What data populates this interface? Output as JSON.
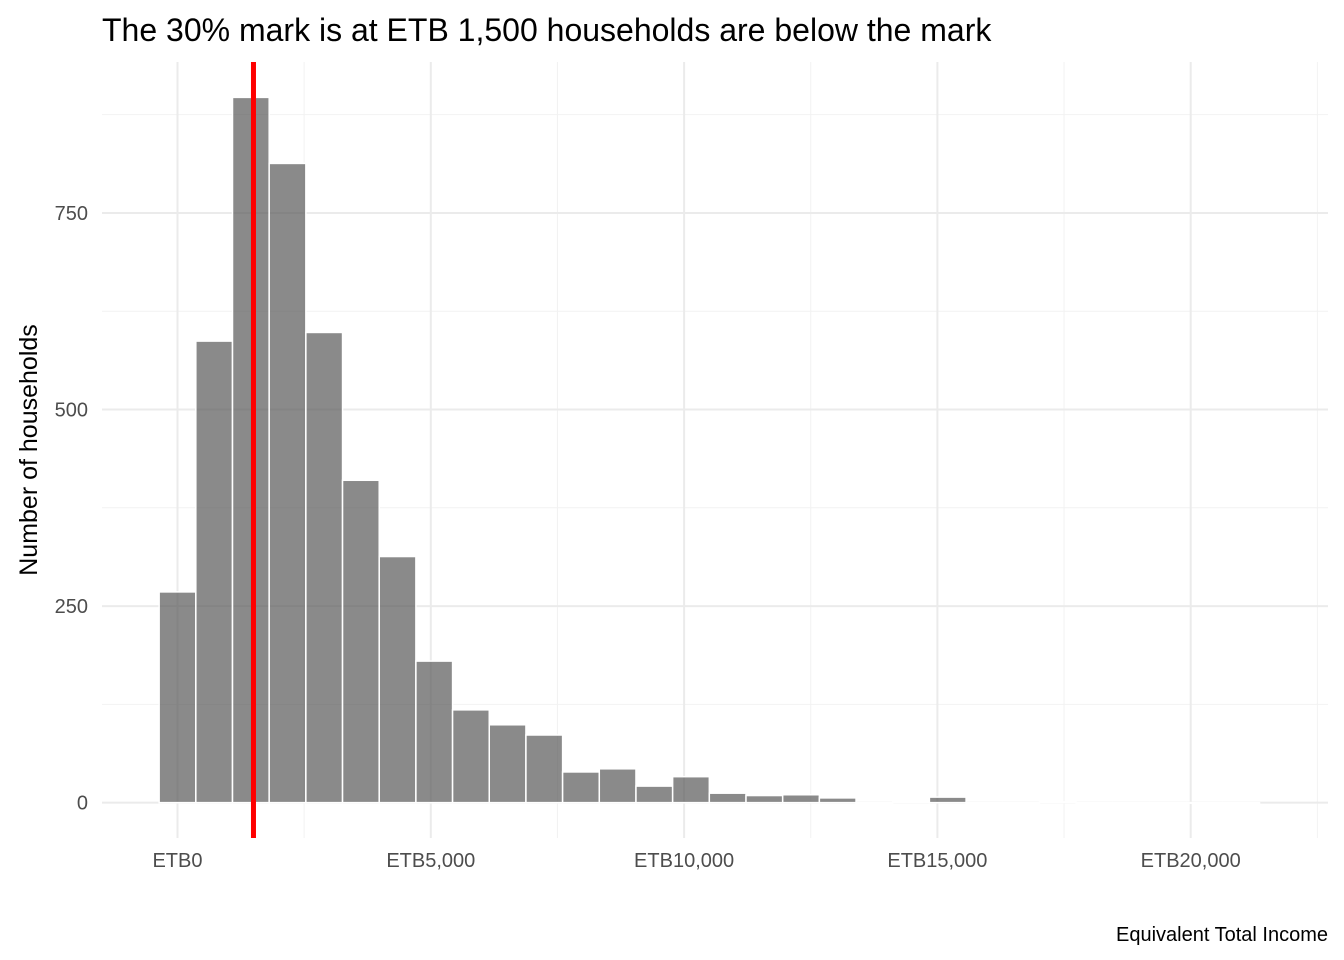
{
  "chart_data": {
    "type": "bar",
    "title": "The 30% mark is at ETB 1,500 households are below the mark",
    "xlabel": "Equivalent Total Income",
    "ylabel": "Number of households",
    "bin_width": 724,
    "bins": [
      {
        "center": 0,
        "count": 268
      },
      {
        "center": 724,
        "count": 587
      },
      {
        "center": 1448,
        "count": 897
      },
      {
        "center": 2172,
        "count": 813
      },
      {
        "center": 2896,
        "count": 598
      },
      {
        "center": 3620,
        "count": 410
      },
      {
        "center": 4344,
        "count": 313
      },
      {
        "center": 5068,
        "count": 180
      },
      {
        "center": 5792,
        "count": 118
      },
      {
        "center": 6516,
        "count": 99
      },
      {
        "center": 7240,
        "count": 86
      },
      {
        "center": 7964,
        "count": 39
      },
      {
        "center": 8688,
        "count": 43
      },
      {
        "center": 9412,
        "count": 21
      },
      {
        "center": 10136,
        "count": 33
      },
      {
        "center": 10860,
        "count": 12
      },
      {
        "center": 11584,
        "count": 9
      },
      {
        "center": 12308,
        "count": 10
      },
      {
        "center": 13032,
        "count": 6
      },
      {
        "center": 13756,
        "count": 0
      },
      {
        "center": 14480,
        "count": 1
      },
      {
        "center": 15204,
        "count": 7
      },
      {
        "center": 15928,
        "count": 0
      },
      {
        "center": 16652,
        "count": 0
      },
      {
        "center": 17376,
        "count": 1
      },
      {
        "center": 18100,
        "count": 0
      },
      {
        "center": 18824,
        "count": 0
      },
      {
        "center": 19548,
        "count": 0
      },
      {
        "center": 20272,
        "count": 0
      },
      {
        "center": 20996,
        "count": 0
      }
    ],
    "x_ticks": [
      {
        "value": 0,
        "label": "ETB0"
      },
      {
        "value": 5000,
        "label": "ETB5,000"
      },
      {
        "value": 10000,
        "label": "ETB10,000"
      },
      {
        "value": 15000,
        "label": "ETB15,000"
      },
      {
        "value": 20000,
        "label": "ETB20,000"
      }
    ],
    "y_ticks": [
      {
        "value": 0,
        "label": "0"
      },
      {
        "value": 250,
        "label": "250"
      },
      {
        "value": 500,
        "label": "500"
      },
      {
        "value": 750,
        "label": "750"
      }
    ],
    "xlim": [
      -1490,
      22710
    ],
    "ylim": [
      -45,
      942
    ],
    "reference_line": {
      "x": 1500,
      "color": "#ff0000"
    },
    "bar_color": "#595959",
    "grid": true,
    "legend": "none"
  }
}
